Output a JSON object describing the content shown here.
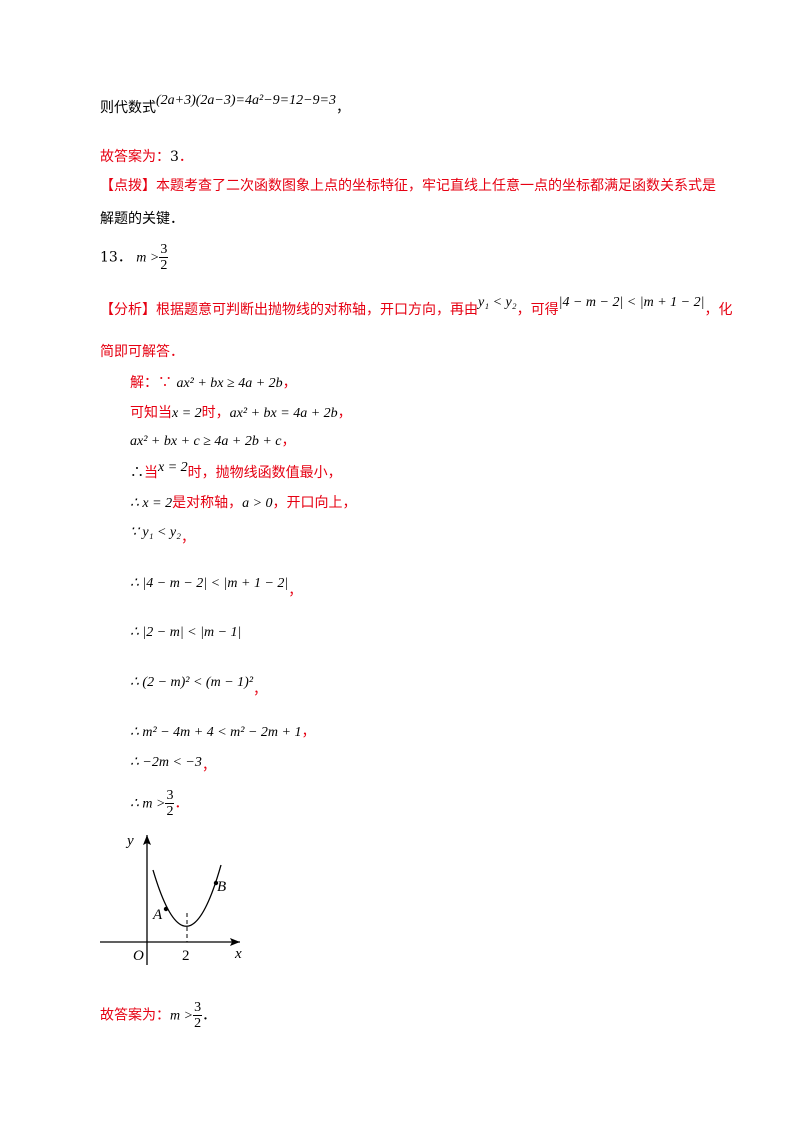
{
  "lines": [
    [
      "则代数式",
      "(2a+3)(2a−3)=4a²−9=12−9=3",
      "，"
    ],
    [
      "故答案为：",
      "3",
      "．"
    ],
    [
      "【点拨】本题考查了二次函数图象上点的坐标特征，牢记直线上任意一点的坐标都满足函数关系式是"
    ],
    [
      "解题的关键．"
    ],
    [
      "13．",
      "m >",
      "3",
      "2"
    ],
    [
      "【分析】根据题意可判断出抛物线的对称轴，开口方向，再由",
      "y₁ < y₂",
      "，可得",
      "|4 − m − 2| < |m + 1 − 2|",
      "，化"
    ],
    [
      "简即可解答．"
    ],
    [
      "解：∵ ",
      "ax² + bx ≥ 4a + 2b",
      "，"
    ],
    [
      "可知当",
      "x = 2",
      "时，",
      "ax² + bx = 4a + 2b",
      "，"
    ],
    [
      "ax² + bx + c ≥ 4a + 2b + c",
      "，"
    ],
    [
      "∴",
      "当",
      "x = 2",
      "时，抛物线函数值最小，"
    ],
    [
      "∴ x = 2",
      "是对称轴，",
      "a > 0",
      "，开口向上，"
    ],
    [
      "∵ y₁ < y₂",
      "，"
    ],
    [
      "∴ |4 − m − 2| < |m + 1 − 2|",
      "，"
    ],
    [
      "∴ |2 − m| < |m − 1|"
    ],
    [
      "∴ (2 − m)² < (m − 1)²",
      "，"
    ],
    [
      "∴ m² − 4m + 4 < m² − 2m + 1",
      "，"
    ],
    [
      "∴ −2m < −3",
      "，"
    ],
    [
      "∴ m >",
      "3",
      "2",
      "．"
    ],
    [
      "故答案为：",
      "m >",
      "3",
      "2",
      "．"
    ]
  ],
  "figure": {
    "y_label": "y",
    "x_label": "x",
    "origin_label": "O",
    "tick_label": "2",
    "point_a": "A",
    "point_b": "B"
  }
}
